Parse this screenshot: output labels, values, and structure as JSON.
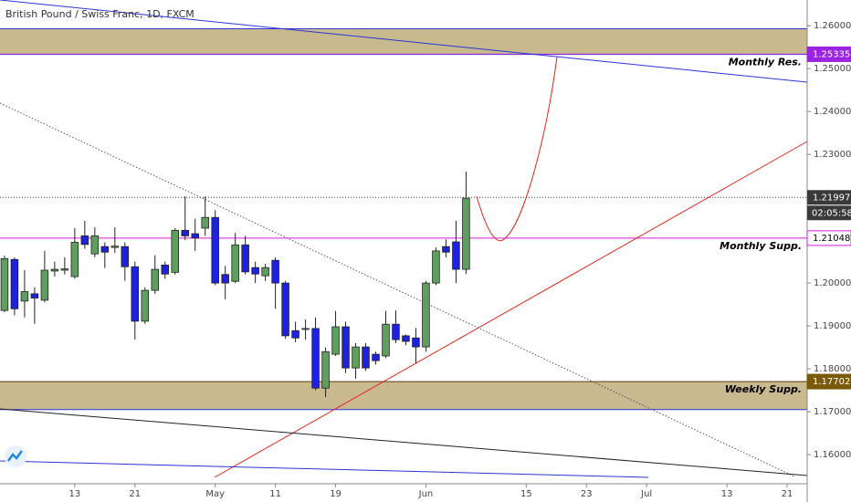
{
  "chart_data": {
    "type": "candlestick",
    "title": "British Pound / Swiss Franc, 1D, FXCM",
    "categories": [
      null,
      null,
      null,
      null,
      null,
      null,
      null,
      "13",
      null,
      null,
      null,
      null,
      null,
      "21",
      null,
      null,
      null,
      null,
      null,
      null,
      null,
      "May",
      null,
      null,
      null,
      null,
      null,
      "11",
      null,
      null,
      null,
      null,
      null,
      "19",
      null,
      null,
      null,
      null,
      null,
      null,
      null,
      null,
      "Jun",
      null,
      null,
      null,
      null,
      null,
      null,
      null,
      null,
      null,
      "15",
      null,
      null,
      null,
      null,
      null,
      "23",
      null,
      null,
      null,
      null,
      null,
      "Jul",
      null,
      null,
      null,
      null,
      null,
      null,
      null,
      "13",
      null,
      null,
      null,
      null,
      null,
      "21",
      null
    ],
    "open": [
      1.1936,
      1.2055,
      1.1958,
      1.1975,
      1.196,
      1.2028,
      1.203,
      1.2015,
      1.211,
      1.2068,
      1.2085,
      1.2083,
      1.2085,
      1.2038,
      1.1911,
      1.1983,
      1.2042,
      1.2025,
      1.2123,
      1.2115,
      1.2128,
      1.2153,
      1.202,
      1.2004,
      1.2089,
      1.2036,
      1.2017,
      1.2053,
      1.2,
      1.1889,
      1.1892,
      1.1894,
      1.1755,
      1.1834,
      1.1898,
      1.1802,
      1.1851,
      1.1834,
      1.183,
      1.1904,
      1.1877,
      1.1872,
      1.1851,
      1.2,
      1.2085,
      1.2096,
      1.2032,
      null,
      null,
      null,
      null,
      null,
      null,
      null,
      null,
      null,
      null,
      null,
      null,
      null,
      null,
      null,
      null,
      null,
      null,
      null,
      null,
      null,
      null,
      null,
      null,
      null,
      null,
      null,
      null,
      null,
      null,
      null,
      null,
      null
    ],
    "high": [
      1.2064,
      1.206,
      1.203,
      1.199,
      1.2075,
      1.205,
      1.206,
      1.2128,
      1.2145,
      1.213,
      1.2095,
      1.213,
      1.2095,
      1.205,
      1.199,
      1.2065,
      1.205,
      1.2128,
      1.2202,
      1.215,
      1.2202,
      1.217,
      1.204,
      1.2117,
      1.211,
      1.205,
      1.2045,
      1.206,
      1.2005,
      1.191,
      1.1915,
      1.192,
      1.185,
      1.1935,
      1.191,
      1.186,
      1.186,
      1.184,
      1.1935,
      1.1936,
      1.188,
      1.1895,
      1.2005,
      1.2083,
      1.2102,
      1.2145,
      1.226,
      null,
      null,
      null,
      null,
      null,
      null,
      null,
      null,
      null,
      null,
      null,
      null,
      null,
      null,
      null,
      null,
      null,
      null,
      null,
      null,
      null,
      null,
      null,
      null,
      null,
      null,
      null,
      null,
      null,
      null,
      null,
      null,
      null
    ],
    "low": [
      1.1932,
      1.1925,
      1.192,
      1.1905,
      1.1955,
      1.2015,
      1.202,
      1.201,
      1.208,
      1.206,
      1.2035,
      1.207,
      1.2005,
      1.1868,
      1.1905,
      1.1975,
      1.201,
      1.202,
      1.21,
      1.2075,
      1.211,
      1.1995,
      1.1962,
      1.2,
      1.202,
      1.2,
      1.2005,
      1.194,
      1.187,
      1.1862,
      1.1868,
      1.175,
      1.1734,
      1.183,
      1.179,
      1.1777,
      1.1795,
      1.181,
      1.1825,
      1.186,
      1.1855,
      1.1813,
      1.184,
      1.1995,
      1.206,
      1.2,
      1.2021,
      null,
      null,
      null,
      null,
      null,
      null,
      null,
      null,
      null,
      null,
      null,
      null,
      null,
      null,
      null,
      null,
      null,
      null,
      null,
      null,
      null,
      null,
      null,
      null,
      null,
      null,
      null,
      null,
      null,
      null,
      null,
      null,
      null
    ],
    "close": [
      1.2057,
      1.194,
      1.198,
      1.1965,
      1.203,
      1.2032,
      1.2033,
      1.2095,
      1.209,
      1.211,
      1.2072,
      1.2086,
      1.2038,
      1.1911,
      1.1983,
      1.2032,
      1.2021,
      1.2123,
      1.211,
      1.2105,
      1.2153,
      1.2,
      1.2,
      1.2089,
      1.2026,
      1.2021,
      1.2036,
      1.2,
      1.1877,
      1.1872,
      1.1894,
      1.1755,
      1.184,
      1.1898,
      1.1802,
      1.1851,
      1.1802,
      1.1819,
      1.1904,
      1.1868,
      1.1864,
      1.1851,
      1.2,
      1.2075,
      1.2072,
      1.2032,
      1.2198,
      null,
      null,
      null,
      null,
      null,
      null,
      null,
      null,
      null,
      null,
      null,
      null,
      null,
      null,
      null,
      null,
      null,
      null,
      null,
      null,
      null,
      null,
      null,
      null,
      null,
      null,
      null,
      null,
      null,
      null,
      null,
      null,
      null
    ],
    "up_color": "#5e9e5e",
    "down_color": "#1e22dc",
    "ylim": [
      1.1532,
      1.266
    ],
    "yticks": [
      {
        "value": 1.16,
        "label": "1.16000"
      },
      {
        "value": 1.17,
        "label": "1.17000"
      },
      {
        "value": 1.18,
        "label": "1.18000"
      },
      {
        "value": 1.19,
        "label": "1.19000"
      },
      {
        "value": 1.2,
        "label": "1.20000"
      },
      {
        "value": 1.21,
        "label": "1.21000"
      },
      {
        "value": 1.22,
        "label": "1.22000"
      },
      {
        "value": 1.23,
        "label": "1.23000"
      },
      {
        "value": 1.24,
        "label": "1.24000"
      },
      {
        "value": 1.25,
        "label": "1.25000"
      },
      {
        "value": 1.26,
        "label": "1.26000"
      }
    ],
    "zones": [
      {
        "low": 1.2533,
        "high": 1.2593,
        "color": "#c9b98f"
      },
      {
        "low": 1.1705,
        "high": 1.177,
        "color": "#c9b98f"
      }
    ],
    "levels": [
      {
        "name": "Monthly Res.",
        "value": 1.25335,
        "color": "#9a24e0",
        "text_color": "#ffffff"
      },
      {
        "name": "Monthly Supp.",
        "value": 1.21048,
        "color": "#d81bd8",
        "text_color": "#000000"
      },
      {
        "name": "Weekly Supp.",
        "value": 1.17702,
        "color": "#7a5a08",
        "text_color": "#ffffff"
      }
    ],
    "last_price": {
      "value": 1.21997,
      "countdown": "02:05:58"
    }
  }
}
